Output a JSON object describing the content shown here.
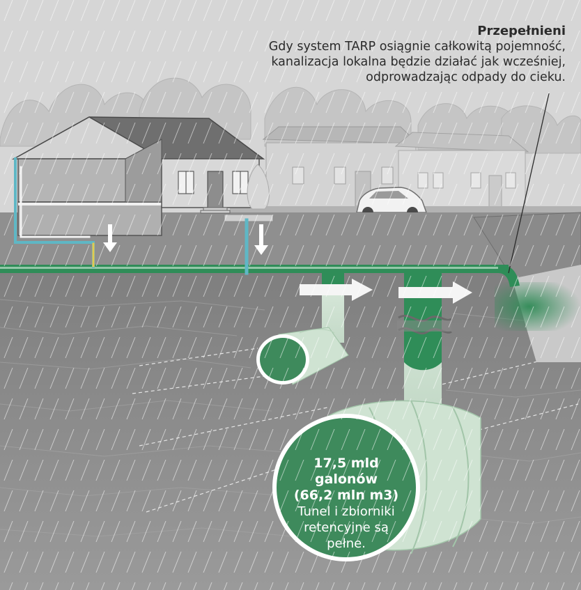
{
  "overflow_callout": {
    "title": "Przepełnieni",
    "body": "Gdy system TARP osiągnie całkowitą pojemność,\nkanalizacja lokalna będzie działać jak wcześniej,\nodprowadzając odpady do cieku."
  },
  "tunnel_label": {
    "line1": "17,5 mld galonów",
    "line2": "(66,2 mln m3)",
    "description": "Tunel i zbiorniki\nretencyjne są\npełne."
  },
  "colors": {
    "sky": "#d9d9d9",
    "ground": "#8a8a8a",
    "pipe_green": "#2e8a55",
    "tunnel_green": "#3e8a5c",
    "tunnel_pale": "#cfe3d2",
    "storm_blue": "#5fb7c5",
    "house_gray": "#8c8c8c"
  }
}
